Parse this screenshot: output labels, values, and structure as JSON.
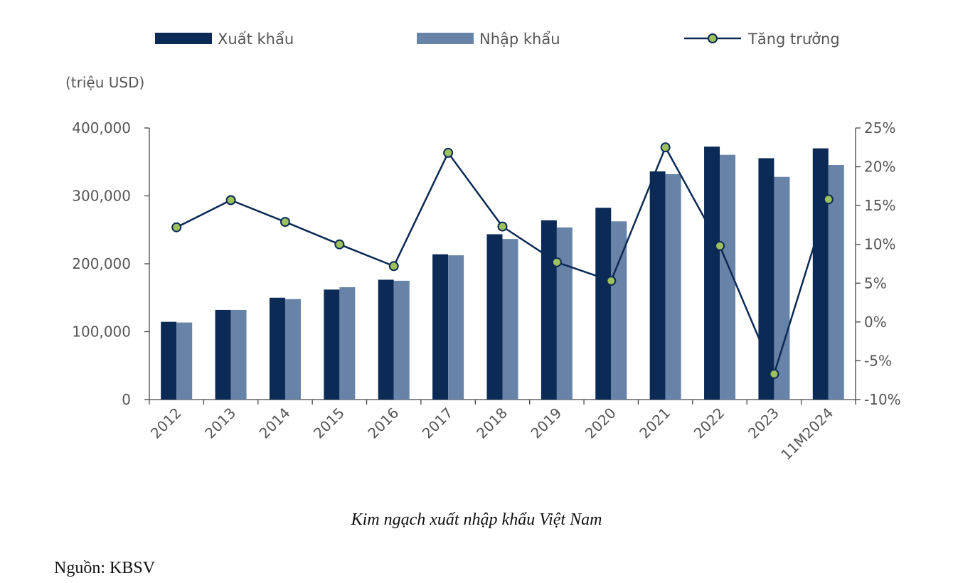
{
  "chart_data": {
    "type": "bar",
    "categories": [
      "2012",
      "2013",
      "2014",
      "2015",
      "2016",
      "2017",
      "2018",
      "2019",
      "2020",
      "2021",
      "2022",
      "2023",
      "11M2024"
    ],
    "series": [
      {
        "name": "Xuất khẩu",
        "kind": "bar",
        "axis": "left",
        "color": "#0b2a55",
        "values": [
          114500,
          132000,
          150000,
          162000,
          176500,
          214000,
          243500,
          264000,
          282500,
          336000,
          372500,
          355500,
          370000
        ]
      },
      {
        "name": "Nhập khẩu",
        "kind": "bar",
        "axis": "left",
        "color": "#6783a8",
        "values": [
          113500,
          132000,
          148000,
          165500,
          175000,
          212500,
          236500,
          253500,
          262500,
          332000,
          360500,
          328000,
          345500
        ]
      },
      {
        "name": "Tăng trưởng",
        "kind": "line",
        "axis": "right",
        "color": "#0b2a55",
        "marker_color": "#9dc15c",
        "values": [
          12.2,
          15.7,
          12.9,
          10.0,
          7.2,
          21.8,
          12.3,
          7.7,
          5.3,
          22.5,
          9.8,
          -6.7,
          15.8
        ]
      }
    ],
    "y_left": {
      "min": 0,
      "max": 400000,
      "ticks": [
        0,
        100000,
        200000,
        300000,
        400000
      ],
      "tick_labels": [
        "0",
        "100,000",
        "200,000",
        "300,000",
        "400,000"
      ]
    },
    "y_right": {
      "min": -10,
      "max": 25,
      "ticks": [
        -10,
        -5,
        0,
        5,
        10,
        15,
        20,
        25
      ],
      "tick_labels": [
        "-10%",
        "-5%",
        "0%",
        "5%",
        "10%",
        "15%",
        "20%",
        "25%"
      ]
    },
    "ylabel": "(triệu USD)",
    "title": "Kim ngạch xuất nhập khẩu Việt Nam",
    "legend_position": "top"
  },
  "caption": "Kim ngạch xuất nhập khẩu Việt Nam",
  "source": "Nguồn: KBSV"
}
